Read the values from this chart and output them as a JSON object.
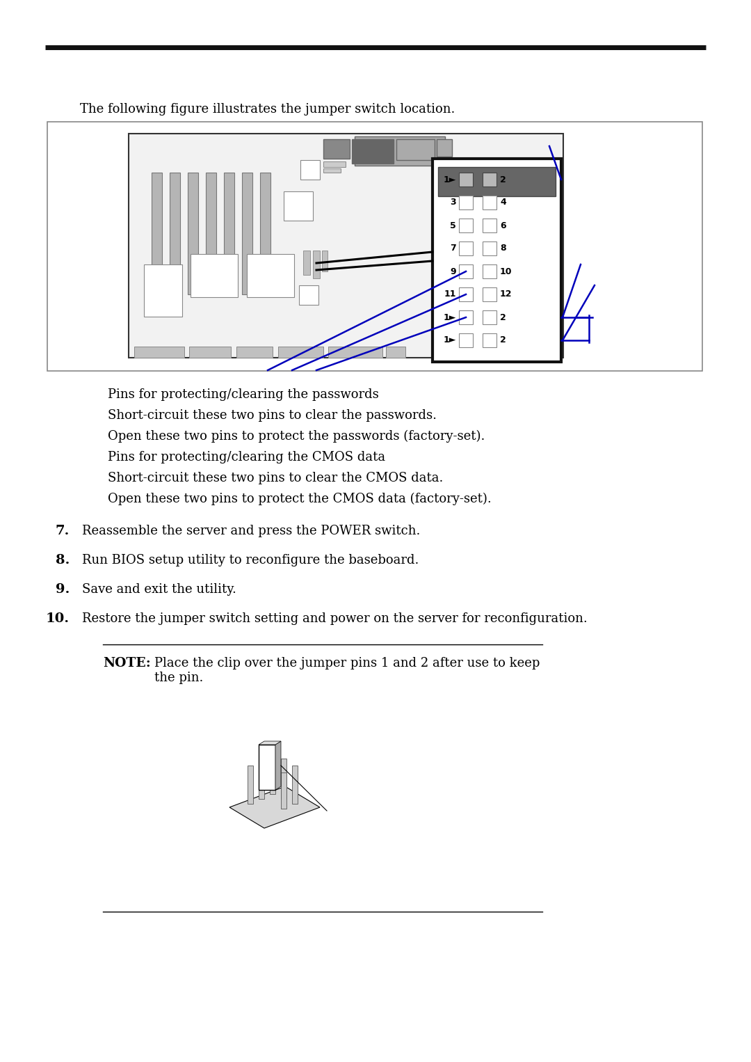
{
  "title_line": "The following figure illustrates the jumper switch location.",
  "bg_color": "#ffffff",
  "text_color": "#000000",
  "blue_color": "#0000bb",
  "description_lines": [
    "Pins for protecting/clearing the passwords",
    "Short-circuit these two pins to clear the passwords.",
    "Open these two pins to protect the passwords (factory-set).",
    "Pins for protecting/clearing the CMOS data",
    "Short-circuit these two pins to clear the CMOS data.",
    "Open these two pins to protect the CMOS data (factory-set)."
  ],
  "numbered_items": [
    [
      "7.",
      "Reassemble the server and press the POWER switch."
    ],
    [
      "8.",
      "Run BIOS setup utility to reconfigure the baseboard."
    ],
    [
      "9.",
      "Save and exit the utility."
    ],
    [
      "10.",
      "Restore the jumper switch setting and power on the server for reconfiguration."
    ]
  ],
  "note_label": "NOTE:",
  "note_text": "Place the clip over the jumper pins 1 and 2 after use to keep\nthe pin."
}
